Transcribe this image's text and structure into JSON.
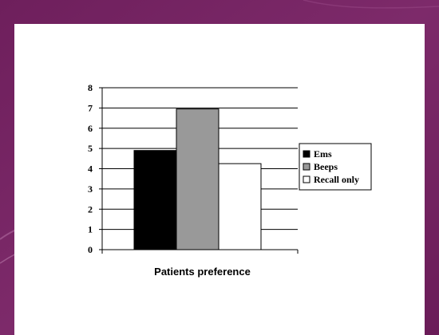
{
  "colors": {
    "frame": "#7a2466",
    "frame_accent": "#a05090",
    "slide": "#ffffff"
  },
  "chart_data": {
    "type": "bar",
    "categories": [
      "Patients preference"
    ],
    "series": [
      {
        "name": "Ems",
        "values": [
          4.9
        ],
        "color": "#000000"
      },
      {
        "name": "Beeps",
        "values": [
          6.95
        ],
        "color": "#999999"
      },
      {
        "name": "Recall only",
        "values": [
          4.25
        ],
        "color": "#ffffff"
      }
    ],
    "title": "",
    "xlabel": "Patients preference",
    "ylabel": "",
    "ylim": [
      0,
      8
    ],
    "yticks": [
      0,
      1,
      2,
      3,
      4,
      5,
      6,
      7,
      8
    ],
    "grid": true,
    "legend": "right"
  }
}
